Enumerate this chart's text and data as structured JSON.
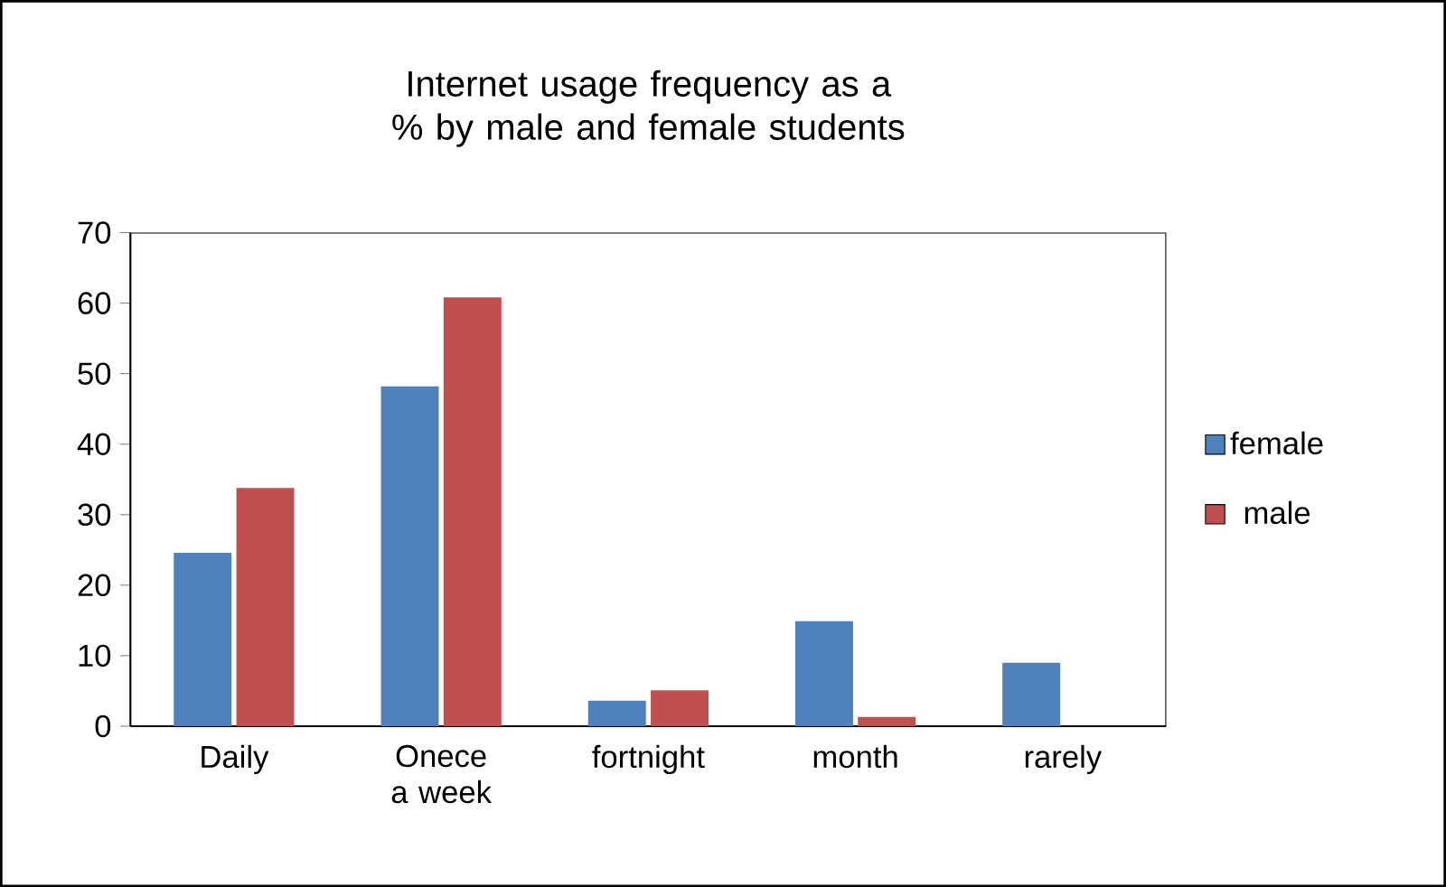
{
  "chart_data": {
    "type": "bar",
    "title": "Internet usage frequency as a % by male and female students",
    "categories": [
      "Daily",
      "Onece a week",
      "fortnight",
      "month",
      "rarely"
    ],
    "series": [
      {
        "name": "female",
        "color": "#4f81bd",
        "values": [
          24.6,
          48.2,
          3.6,
          14.9,
          9.0
        ]
      },
      {
        "name": "male",
        "color": "#c0504d",
        "values": [
          33.8,
          60.8,
          5.1,
          1.3,
          0
        ]
      }
    ],
    "ylim": [
      0,
      70
    ],
    "yticks": [
      0,
      10,
      20,
      30,
      40,
      50,
      60,
      70
    ],
    "legend": "right"
  }
}
